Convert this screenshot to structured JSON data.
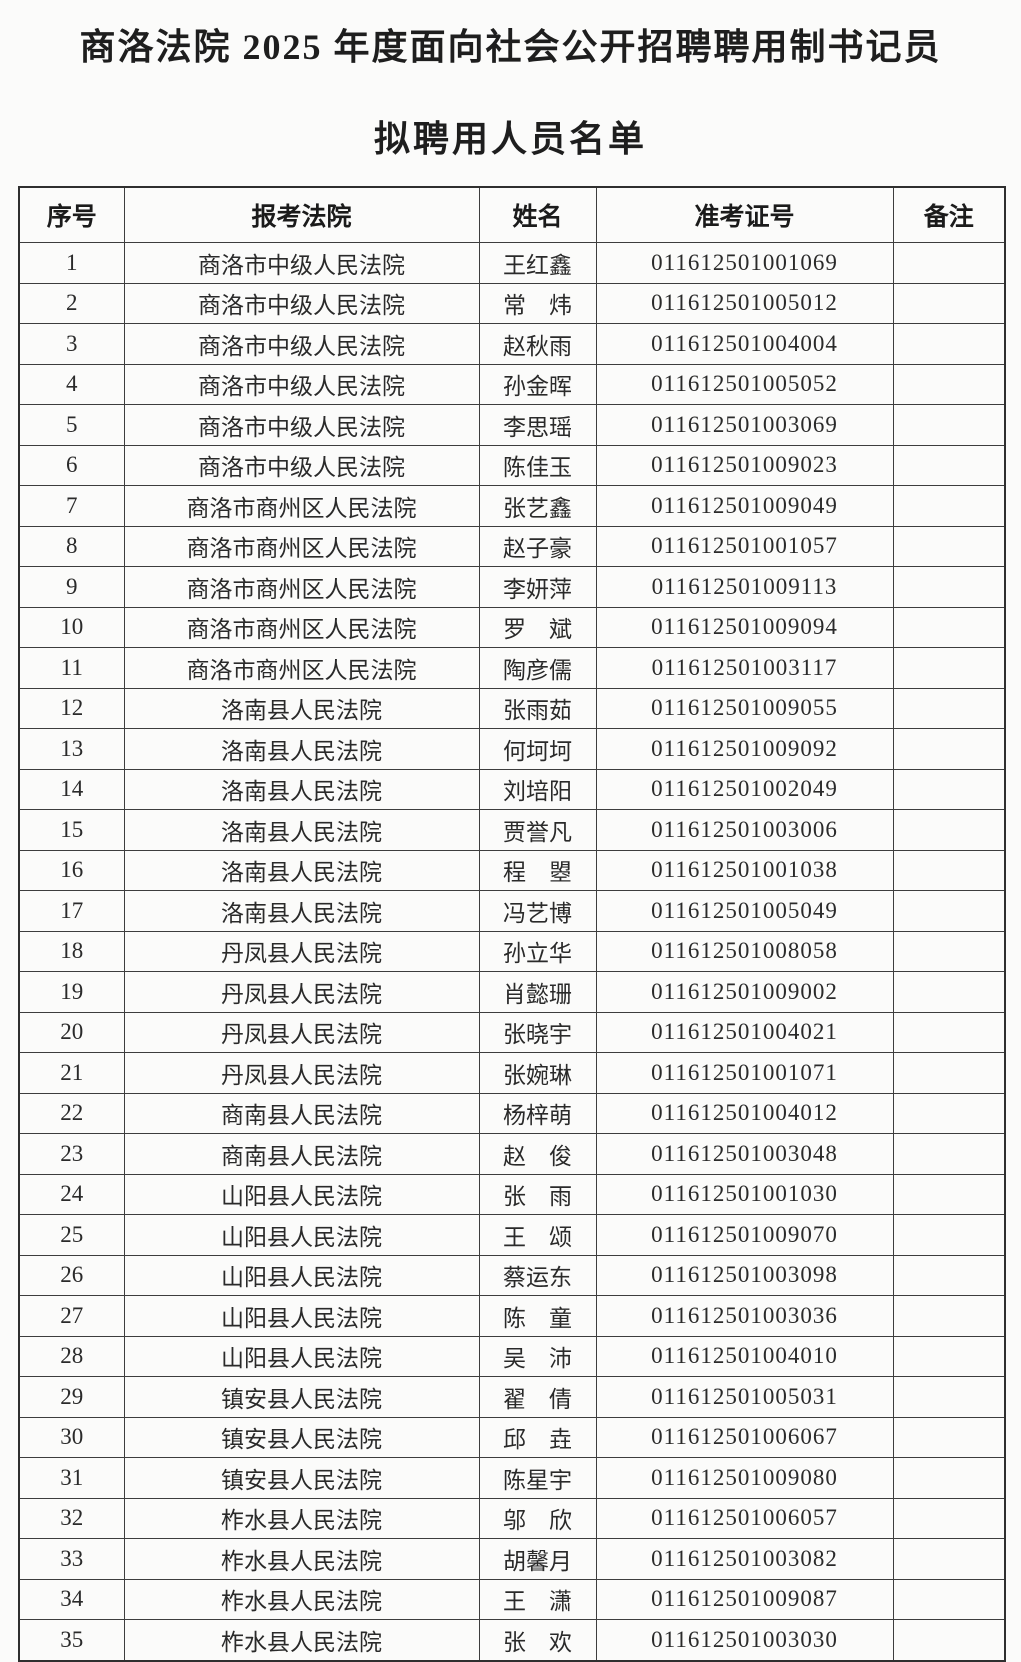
{
  "page": {
    "title_line1": "商洛法院 2025 年度面向社会公开招聘聘用制书记员",
    "title_line2": "拟聘用人员名单"
  },
  "table": {
    "headers": [
      "序号",
      "报考法院",
      "姓名",
      "准考证号",
      "备注"
    ],
    "rows": [
      {
        "no": "1",
        "court": "商洛市中级人民法院",
        "name": "王红鑫",
        "ticket": "011612501001069",
        "remark": ""
      },
      {
        "no": "2",
        "court": "商洛市中级人民法院",
        "name": "常　炜",
        "ticket": "011612501005012",
        "remark": ""
      },
      {
        "no": "3",
        "court": "商洛市中级人民法院",
        "name": "赵秋雨",
        "ticket": "011612501004004",
        "remark": ""
      },
      {
        "no": "4",
        "court": "商洛市中级人民法院",
        "name": "孙金晖",
        "ticket": "011612501005052",
        "remark": ""
      },
      {
        "no": "5",
        "court": "商洛市中级人民法院",
        "name": "李思瑶",
        "ticket": "011612501003069",
        "remark": ""
      },
      {
        "no": "6",
        "court": "商洛市中级人民法院",
        "name": "陈佳玉",
        "ticket": "011612501009023",
        "remark": ""
      },
      {
        "no": "7",
        "court": "商洛市商州区人民法院",
        "name": "张艺鑫",
        "ticket": "011612501009049",
        "remark": ""
      },
      {
        "no": "8",
        "court": "商洛市商州区人民法院",
        "name": "赵子豪",
        "ticket": "011612501001057",
        "remark": ""
      },
      {
        "no": "9",
        "court": "商洛市商州区人民法院",
        "name": "李妍萍",
        "ticket": "011612501009113",
        "remark": ""
      },
      {
        "no": "10",
        "court": "商洛市商州区人民法院",
        "name": "罗　斌",
        "ticket": "011612501009094",
        "remark": ""
      },
      {
        "no": "11",
        "court": "商洛市商州区人民法院",
        "name": "陶彦儒",
        "ticket": "011612501003117",
        "remark": ""
      },
      {
        "no": "12",
        "court": "洛南县人民法院",
        "name": "张雨茹",
        "ticket": "011612501009055",
        "remark": ""
      },
      {
        "no": "13",
        "court": "洛南县人民法院",
        "name": "何坷坷",
        "ticket": "011612501009092",
        "remark": ""
      },
      {
        "no": "14",
        "court": "洛南县人民法院",
        "name": "刘培阳",
        "ticket": "011612501002049",
        "remark": ""
      },
      {
        "no": "15",
        "court": "洛南县人民法院",
        "name": "贾誉凡",
        "ticket": "011612501003006",
        "remark": ""
      },
      {
        "no": "16",
        "court": "洛南县人民法院",
        "name": "程　曌",
        "ticket": "011612501001038",
        "remark": ""
      },
      {
        "no": "17",
        "court": "洛南县人民法院",
        "name": "冯艺博",
        "ticket": "011612501005049",
        "remark": ""
      },
      {
        "no": "18",
        "court": "丹凤县人民法院",
        "name": "孙立华",
        "ticket": "011612501008058",
        "remark": ""
      },
      {
        "no": "19",
        "court": "丹凤县人民法院",
        "name": "肖懿珊",
        "ticket": "011612501009002",
        "remark": ""
      },
      {
        "no": "20",
        "court": "丹凤县人民法院",
        "name": "张晓宇",
        "ticket": "011612501004021",
        "remark": ""
      },
      {
        "no": "21",
        "court": "丹凤县人民法院",
        "name": "张婉琳",
        "ticket": "011612501001071",
        "remark": ""
      },
      {
        "no": "22",
        "court": "商南县人民法院",
        "name": "杨梓萌",
        "ticket": "011612501004012",
        "remark": ""
      },
      {
        "no": "23",
        "court": "商南县人民法院",
        "name": "赵　俊",
        "ticket": "011612501003048",
        "remark": ""
      },
      {
        "no": "24",
        "court": "山阳县人民法院",
        "name": "张　雨",
        "ticket": "011612501001030",
        "remark": ""
      },
      {
        "no": "25",
        "court": "山阳县人民法院",
        "name": "王　颂",
        "ticket": "011612501009070",
        "remark": ""
      },
      {
        "no": "26",
        "court": "山阳县人民法院",
        "name": "蔡运东",
        "ticket": "011612501003098",
        "remark": ""
      },
      {
        "no": "27",
        "court": "山阳县人民法院",
        "name": "陈　童",
        "ticket": "011612501003036",
        "remark": ""
      },
      {
        "no": "28",
        "court": "山阳县人民法院",
        "name": "吴　沛",
        "ticket": "011612501004010",
        "remark": ""
      },
      {
        "no": "29",
        "court": "镇安县人民法院",
        "name": "翟　倩",
        "ticket": "011612501005031",
        "remark": ""
      },
      {
        "no": "30",
        "court": "镇安县人民法院",
        "name": "邱　垚",
        "ticket": "011612501006067",
        "remark": ""
      },
      {
        "no": "31",
        "court": "镇安县人民法院",
        "name": "陈星宇",
        "ticket": "011612501009080",
        "remark": ""
      },
      {
        "no": "32",
        "court": "柞水县人民法院",
        "name": "邬　欣",
        "ticket": "011612501006057",
        "remark": ""
      },
      {
        "no": "33",
        "court": "柞水县人民法院",
        "name": "胡馨月",
        "ticket": "011612501003082",
        "remark": ""
      },
      {
        "no": "34",
        "court": "柞水县人民法院",
        "name": "王　潇",
        "ticket": "011612501009087",
        "remark": ""
      },
      {
        "no": "35",
        "court": "柞水县人民法院",
        "name": "张　欢",
        "ticket": "011612501003030",
        "remark": ""
      }
    ]
  }
}
